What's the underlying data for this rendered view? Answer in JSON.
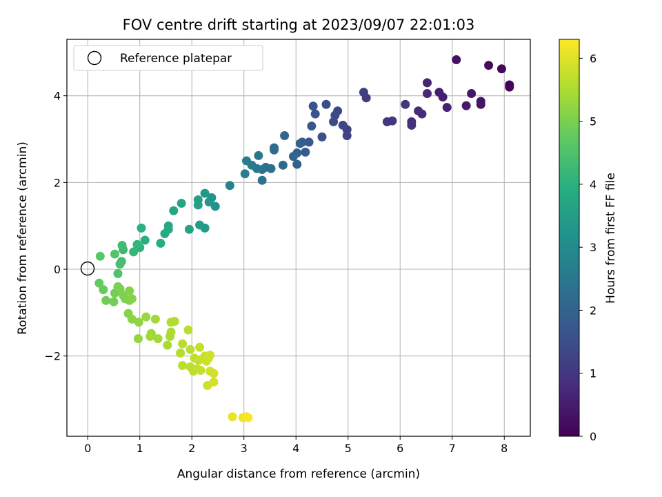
{
  "chart_data": {
    "type": "scatter",
    "title": "FOV centre drift starting at 2023/09/07 22:01:03",
    "xlabel": "Angular distance from reference (arcmin)",
    "ylabel": "Rotation from reference (arcmin)",
    "xlim": [
      -0.4,
      8.5
    ],
    "ylim": [
      -3.85,
      5.3
    ],
    "xticks": [
      0,
      1,
      2,
      3,
      4,
      5,
      6,
      7,
      8
    ],
    "yticks": [
      -2,
      0,
      2,
      4
    ],
    "ytick_labels": [
      "−2",
      "0",
      "2",
      "4"
    ],
    "grid": true,
    "legend": {
      "placement": "top-left",
      "entries": [
        "Reference platepar"
      ]
    },
    "reference_point": {
      "x": 0,
      "y": 0,
      "label": "Reference platepar"
    },
    "colorbar": {
      "label": "Hours from first FF file",
      "range": [
        0,
        6.3
      ],
      "ticks": [
        0,
        1,
        2,
        3,
        4,
        5,
        6
      ],
      "colormap": "viridis"
    },
    "points": [
      [
        8.1,
        4.25,
        0.05
      ],
      [
        8.1,
        4.2,
        0.08
      ],
      [
        7.95,
        4.62,
        0.12
      ],
      [
        7.7,
        4.7,
        0.2
      ],
      [
        7.08,
        4.83,
        0.3
      ],
      [
        7.55,
        3.87,
        0.35
      ],
      [
        7.55,
        3.8,
        0.38
      ],
      [
        7.37,
        4.05,
        0.42
      ],
      [
        7.27,
        3.77,
        0.47
      ],
      [
        6.75,
        4.08,
        0.52
      ],
      [
        6.82,
        3.97,
        0.56
      ],
      [
        6.9,
        3.73,
        0.6
      ],
      [
        6.52,
        4.3,
        0.65
      ],
      [
        6.52,
        4.05,
        0.7
      ],
      [
        6.35,
        3.65,
        0.75
      ],
      [
        6.42,
        3.58,
        0.8
      ],
      [
        6.22,
        3.4,
        0.85
      ],
      [
        6.22,
        3.32,
        0.9
      ],
      [
        6.1,
        3.8,
        0.95
      ],
      [
        5.85,
        3.42,
        1.0
      ],
      [
        5.75,
        3.4,
        1.05
      ],
      [
        5.35,
        3.95,
        1.1
      ],
      [
        5.3,
        4.08,
        1.15
      ],
      [
        4.98,
        3.22,
        1.2
      ],
      [
        4.98,
        3.08,
        1.25
      ],
      [
        4.9,
        3.32,
        1.3
      ],
      [
        4.8,
        3.65,
        1.35
      ],
      [
        4.75,
        3.55,
        1.4
      ],
      [
        4.72,
        3.4,
        1.45
      ],
      [
        4.58,
        3.8,
        1.5
      ],
      [
        4.5,
        3.05,
        1.55
      ],
      [
        4.37,
        3.58,
        1.6
      ],
      [
        4.33,
        3.76,
        1.65
      ],
      [
        4.3,
        3.3,
        1.7
      ],
      [
        4.25,
        2.93,
        1.75
      ],
      [
        4.18,
        2.7,
        1.8
      ],
      [
        4.12,
        2.93,
        1.85
      ],
      [
        4.08,
        2.9,
        1.9
      ],
      [
        4.02,
        2.68,
        1.95
      ],
      [
        4.02,
        2.42,
        2.0
      ],
      [
        3.95,
        2.6,
        2.05
      ],
      [
        3.78,
        3.08,
        2.1
      ],
      [
        3.75,
        2.4,
        2.15
      ],
      [
        3.58,
        2.8,
        2.2
      ],
      [
        3.58,
        2.75,
        2.25
      ],
      [
        3.52,
        2.32,
        2.3
      ],
      [
        3.42,
        2.35,
        2.35
      ],
      [
        3.35,
        2.3,
        2.4
      ],
      [
        3.35,
        2.05,
        2.45
      ],
      [
        3.28,
        2.62,
        2.5
      ],
      [
        3.25,
        2.32,
        2.55
      ],
      [
        3.15,
        2.4,
        2.6
      ],
      [
        3.05,
        2.5,
        2.65
      ],
      [
        3.02,
        2.2,
        2.7
      ],
      [
        2.73,
        1.93,
        2.8
      ],
      [
        2.45,
        1.45,
        3.2
      ],
      [
        2.38,
        1.65,
        3.25
      ],
      [
        2.33,
        1.55,
        3.3
      ],
      [
        2.25,
        1.75,
        3.35
      ],
      [
        2.25,
        0.95,
        3.4
      ],
      [
        2.15,
        1.02,
        3.45
      ],
      [
        2.12,
        1.6,
        3.5
      ],
      [
        2.12,
        1.48,
        3.55
      ],
      [
        1.95,
        0.92,
        3.6
      ],
      [
        1.8,
        1.52,
        3.65
      ],
      [
        1.65,
        1.35,
        3.7
      ],
      [
        1.55,
        1.0,
        3.75
      ],
      [
        1.55,
        0.92,
        3.8
      ],
      [
        1.48,
        0.82,
        3.85
      ],
      [
        1.4,
        0.6,
        3.9
      ],
      [
        1.1,
        0.67,
        3.95
      ],
      [
        1.03,
        0.95,
        4.0
      ],
      [
        1.0,
        0.5,
        4.05
      ],
      [
        0.95,
        0.57,
        4.1
      ],
      [
        0.88,
        0.4,
        4.15
      ],
      [
        0.68,
        0.45,
        4.25
      ],
      [
        0.66,
        0.55,
        4.3
      ],
      [
        0.65,
        0.18,
        4.35
      ],
      [
        0.62,
        0.12,
        4.4
      ],
      [
        0.58,
        -0.1,
        4.5
      ],
      [
        0.52,
        0.35,
        4.55
      ],
      [
        0.24,
        0.3,
        4.65
      ],
      [
        0.22,
        -0.32,
        4.75
      ],
      [
        0.3,
        -0.47,
        4.8
      ],
      [
        0.35,
        -0.72,
        4.9
      ],
      [
        0.5,
        -0.75,
        4.92
      ],
      [
        0.52,
        -0.55,
        4.95
      ],
      [
        0.58,
        -0.4,
        5.0
      ],
      [
        0.62,
        -0.45,
        5.02
      ],
      [
        0.68,
        -0.6,
        5.05
      ],
      [
        0.72,
        -0.68,
        5.05
      ],
      [
        0.8,
        -0.72,
        5.07
      ],
      [
        0.8,
        -0.5,
        5.1
      ],
      [
        0.85,
        -0.68,
        5.1
      ],
      [
        0.78,
        -1.02,
        5.12
      ],
      [
        0.85,
        -1.15,
        5.15
      ],
      [
        0.98,
        -1.22,
        5.2
      ],
      [
        0.97,
        -1.6,
        5.25
      ],
      [
        1.12,
        -1.1,
        5.3
      ],
      [
        1.22,
        -1.48,
        5.35
      ],
      [
        1.2,
        -1.55,
        5.38
      ],
      [
        1.3,
        -1.15,
        5.4
      ],
      [
        1.35,
        -1.6,
        5.43
      ],
      [
        1.53,
        -1.75,
        5.45
      ],
      [
        1.58,
        -1.55,
        5.48
      ],
      [
        1.6,
        -1.45,
        5.5
      ],
      [
        1.6,
        -1.22,
        5.52
      ],
      [
        1.67,
        -1.2,
        5.55
      ],
      [
        1.78,
        -1.93,
        5.58
      ],
      [
        1.82,
        -1.72,
        5.6
      ],
      [
        1.82,
        -2.22,
        5.62
      ],
      [
        1.93,
        -1.4,
        5.63
      ],
      [
        1.97,
        -1.85,
        5.65
      ],
      [
        1.97,
        -2.25,
        5.67
      ],
      [
        2.03,
        -2.35,
        5.68
      ],
      [
        2.05,
        -2.05,
        5.7
      ],
      [
        2.1,
        -2.3,
        5.72
      ],
      [
        2.13,
        -2.1,
        5.74
      ],
      [
        2.15,
        -1.8,
        5.75
      ],
      [
        2.17,
        -2.33,
        5.76
      ],
      [
        2.25,
        -2.0,
        5.78
      ],
      [
        2.28,
        -2.12,
        5.8
      ],
      [
        2.3,
        -2.68,
        5.82
      ],
      [
        2.32,
        -2.05,
        5.83
      ],
      [
        2.35,
        -1.98,
        5.85
      ],
      [
        2.35,
        -2.35,
        5.86
      ],
      [
        2.42,
        -2.4,
        5.88
      ],
      [
        2.42,
        -2.6,
        5.9
      ],
      [
        2.78,
        -3.4,
        6.1
      ],
      [
        2.98,
        -3.42,
        6.15
      ],
      [
        3.05,
        -3.4,
        6.2
      ],
      [
        3.08,
        -3.42,
        6.25
      ]
    ]
  }
}
